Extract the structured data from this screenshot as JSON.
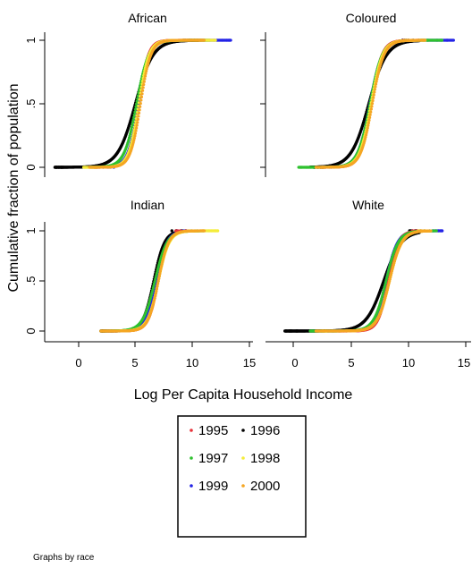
{
  "chart_data": {
    "type": "scatter",
    "ylabel": "Cumulative fraction of population",
    "xlabel": "Log Per Capita Household Income",
    "note": "Graphs by race",
    "xlim": [
      -2.5,
      15
    ],
    "ylim": [
      0,
      1
    ],
    "xticks": [
      "0",
      "5",
      "10",
      "15"
    ],
    "yticks": [
      "0",
      ".5",
      "1"
    ],
    "grid": false,
    "legend_position": "bottom-center",
    "legend": [
      {
        "label": "1995",
        "color": "#e8333a"
      },
      {
        "label": "1996",
        "color": "#000000"
      },
      {
        "label": "1997",
        "color": "#2fc12f"
      },
      {
        "label": "1998",
        "color": "#f4ec3a"
      },
      {
        "label": "1999",
        "color": "#2323e6"
      },
      {
        "label": "2000",
        "color": "#f5a623"
      }
    ],
    "draw_order": [
      "1996",
      "1999",
      "1995",
      "1997",
      "1998",
      "2000"
    ],
    "panels": [
      {
        "title": "African",
        "series": {
          "1995": {
            "mu": 5.3,
            "s": 0.7,
            "min": 1.4,
            "max": 11.0
          },
          "1996": {
            "mu": 5.0,
            "s": 1.3,
            "min": -2.0,
            "max": 10.5
          },
          "1997": {
            "mu": 5.1,
            "s": 0.9,
            "min": 1.0,
            "max": 11.5
          },
          "1998": {
            "mu": 5.3,
            "s": 0.75,
            "min": 0.5,
            "max": 12.0
          },
          "1999": {
            "mu": 5.3,
            "s": 0.8,
            "min": 2.0,
            "max": 13.3
          },
          "2000": {
            "mu": 5.45,
            "s": 0.75,
            "min": 1.0,
            "max": 11.0
          }
        }
      },
      {
        "title": "Coloured",
        "series": {
          "1995": {
            "mu": 6.3,
            "s": 0.8,
            "min": 2.0,
            "max": 10.5
          },
          "1996": {
            "mu": 6.1,
            "s": 1.3,
            "min": 1.0,
            "max": 10.5
          },
          "1997": {
            "mu": 6.2,
            "s": 0.9,
            "min": 0.0,
            "max": 12.5
          },
          "1998": {
            "mu": 6.3,
            "s": 0.85,
            "min": 2.0,
            "max": 11.0
          },
          "1999": {
            "mu": 6.2,
            "s": 0.9,
            "min": 2.0,
            "max": 13.5
          },
          "2000": {
            "mu": 6.4,
            "s": 0.85,
            "min": 1.5,
            "max": 11.0
          }
        }
      },
      {
        "title": "Indian",
        "series": {
          "1995": {
            "mu": 7.0,
            "s": 0.75,
            "min": 2.5,
            "max": 10.0
          },
          "1996": {
            "mu": 6.6,
            "s": 0.8,
            "min": 2.0,
            "max": 9.5
          },
          "1997": {
            "mu": 6.7,
            "s": 0.9,
            "min": 2.5,
            "max": 11.0
          },
          "1998": {
            "mu": 7.0,
            "s": 0.8,
            "min": 2.0,
            "max": 12.2
          },
          "1999": {
            "mu": 6.8,
            "s": 0.8,
            "min": 2.5,
            "max": 10.0
          },
          "2000": {
            "mu": 7.0,
            "s": 0.75,
            "min": 2.0,
            "max": 11.0
          }
        }
      },
      {
        "title": "White",
        "series": {
          "1995": {
            "mu": 7.8,
            "s": 0.75,
            "min": 3.5,
            "max": 11.0
          },
          "1996": {
            "mu": 7.4,
            "s": 1.3,
            "min": -1.2,
            "max": 10.5
          },
          "1997": {
            "mu": 7.6,
            "s": 0.9,
            "min": 1.0,
            "max": 12.0
          },
          "1998": {
            "mu": 7.9,
            "s": 0.9,
            "min": 2.0,
            "max": 11.5
          },
          "1999": {
            "mu": 7.6,
            "s": 0.85,
            "min": 2.5,
            "max": 12.5
          },
          "2000": {
            "mu": 7.9,
            "s": 0.9,
            "min": 1.5,
            "max": 11.5
          }
        }
      }
    ]
  }
}
